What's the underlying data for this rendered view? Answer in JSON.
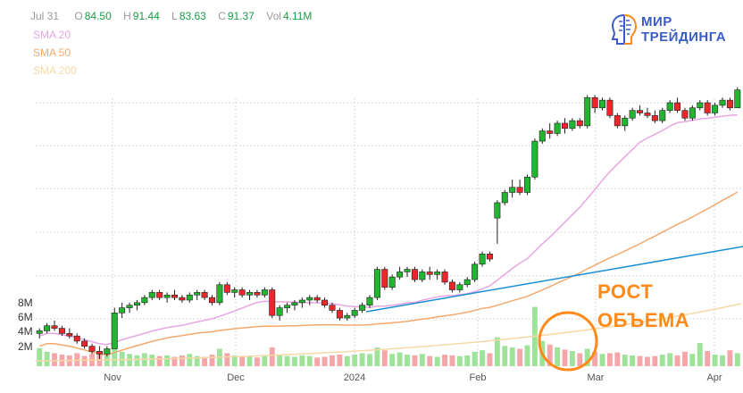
{
  "legend": {
    "date": "Jul 31",
    "o_key": "O",
    "o": "84.50",
    "h_key": "H",
    "h": "91.44",
    "l_key": "L",
    "l": "83.63",
    "c_key": "C",
    "c": "91.37",
    "vol_key": "Vol",
    "vol": "4.11M",
    "sma20": "SMA 20",
    "sma50": "SMA 50",
    "sma200": "SMA 200"
  },
  "logo": {
    "line1": "МИР",
    "line2": "ТРЕЙДИНГА"
  },
  "annotation": {
    "line1": "РОСТ",
    "line2": "ОБЪЕМА"
  },
  "colors": {
    "up": "#21b530",
    "down": "#e8282b",
    "vol_up": "#9fe39a",
    "vol_down": "#f4a6a8",
    "sma20": "#e7a6e4",
    "sma50": "#f3a96e",
    "sma200": "#f6d9a6",
    "trend": "#1a8fd6",
    "annotation": "#ff8a1a",
    "grid": "#d9d9d9",
    "logo": "#3a5cc6"
  },
  "chart_data": {
    "type": "candlestick",
    "x_labels": [
      "Nov",
      "Dec",
      "2024",
      "Feb",
      "Mar",
      "Apr"
    ],
    "volume_ticks": [
      "8M",
      "6M",
      "4M",
      "2M"
    ],
    "volume_range": [
      0,
      10000000
    ],
    "price_range": [
      0,
      1
    ],
    "grid": true,
    "series": [
      {
        "name": "SMA 20",
        "color": "#e7a6e4"
      },
      {
        "name": "SMA 50",
        "color": "#f3a96e"
      },
      {
        "name": "SMA 200",
        "color": "#f6d9a6"
      }
    ],
    "candles": [
      [
        0.1,
        0.12,
        0.08,
        0.11,
        2.5
      ],
      [
        0.11,
        0.14,
        0.1,
        0.13,
        2.0
      ],
      [
        0.13,
        0.15,
        0.11,
        0.12,
        1.8
      ],
      [
        0.12,
        0.13,
        0.09,
        0.1,
        1.6
      ],
      [
        0.1,
        0.12,
        0.08,
        0.09,
        1.5
      ],
      [
        0.09,
        0.1,
        0.06,
        0.07,
        1.8
      ],
      [
        0.07,
        0.08,
        0.04,
        0.05,
        1.4
      ],
      [
        0.05,
        0.06,
        0.02,
        0.03,
        1.7
      ],
      [
        0.03,
        0.05,
        0.0,
        0.02,
        2.0
      ],
      [
        0.02,
        0.05,
        0.01,
        0.04,
        1.6
      ],
      [
        0.04,
        0.2,
        0.04,
        0.18,
        3.6
      ],
      [
        0.18,
        0.22,
        0.16,
        0.2,
        2.0
      ],
      [
        0.2,
        0.22,
        0.18,
        0.21,
        1.7
      ],
      [
        0.21,
        0.23,
        0.19,
        0.22,
        1.5
      ],
      [
        0.22,
        0.25,
        0.21,
        0.24,
        1.8
      ],
      [
        0.24,
        0.27,
        0.23,
        0.26,
        1.6
      ],
      [
        0.26,
        0.27,
        0.23,
        0.24,
        1.4
      ],
      [
        0.24,
        0.26,
        0.22,
        0.25,
        1.5
      ],
      [
        0.25,
        0.27,
        0.23,
        0.24,
        1.3
      ],
      [
        0.24,
        0.25,
        0.22,
        0.23,
        1.5
      ],
      [
        0.23,
        0.26,
        0.22,
        0.25,
        1.7
      ],
      [
        0.25,
        0.27,
        0.23,
        0.26,
        1.4
      ],
      [
        0.26,
        0.27,
        0.23,
        0.24,
        1.3
      ],
      [
        0.24,
        0.25,
        0.21,
        0.22,
        1.6
      ],
      [
        0.22,
        0.3,
        0.21,
        0.29,
        2.4
      ],
      [
        0.29,
        0.3,
        0.25,
        0.26,
        1.8
      ],
      [
        0.26,
        0.28,
        0.24,
        0.27,
        1.5
      ],
      [
        0.27,
        0.28,
        0.24,
        0.25,
        1.4
      ],
      [
        0.25,
        0.27,
        0.23,
        0.26,
        1.3
      ],
      [
        0.26,
        0.27,
        0.24,
        0.25,
        1.2
      ],
      [
        0.25,
        0.28,
        0.24,
        0.27,
        1.4
      ],
      [
        0.27,
        0.28,
        0.16,
        0.17,
        2.6
      ],
      [
        0.17,
        0.21,
        0.15,
        0.2,
        1.5
      ],
      [
        0.2,
        0.22,
        0.18,
        0.21,
        1.4
      ],
      [
        0.21,
        0.23,
        0.19,
        0.22,
        1.3
      ],
      [
        0.22,
        0.24,
        0.2,
        0.23,
        1.5
      ],
      [
        0.23,
        0.25,
        0.21,
        0.24,
        1.4
      ],
      [
        0.24,
        0.25,
        0.22,
        0.23,
        1.2
      ],
      [
        0.23,
        0.24,
        0.2,
        0.21,
        1.3
      ],
      [
        0.21,
        0.22,
        0.18,
        0.19,
        1.5
      ],
      [
        0.19,
        0.2,
        0.15,
        0.16,
        1.6
      ],
      [
        0.16,
        0.18,
        0.15,
        0.17,
        1.4
      ],
      [
        0.17,
        0.2,
        0.16,
        0.19,
        1.6
      ],
      [
        0.19,
        0.22,
        0.18,
        0.21,
        1.8
      ],
      [
        0.21,
        0.25,
        0.2,
        0.24,
        1.7
      ],
      [
        0.24,
        0.36,
        0.23,
        0.35,
        2.6
      ],
      [
        0.35,
        0.36,
        0.27,
        0.28,
        2.2
      ],
      [
        0.28,
        0.33,
        0.27,
        0.32,
        1.7
      ],
      [
        0.32,
        0.36,
        0.31,
        0.34,
        1.9
      ],
      [
        0.34,
        0.36,
        0.32,
        0.35,
        1.6
      ],
      [
        0.35,
        0.36,
        0.3,
        0.31,
        1.5
      ],
      [
        0.31,
        0.35,
        0.3,
        0.34,
        1.7
      ],
      [
        0.34,
        0.36,
        0.31,
        0.33,
        1.4
      ],
      [
        0.33,
        0.35,
        0.31,
        0.34,
        1.3
      ],
      [
        0.34,
        0.35,
        0.29,
        0.3,
        1.6
      ],
      [
        0.3,
        0.31,
        0.26,
        0.27,
        1.5
      ],
      [
        0.27,
        0.3,
        0.26,
        0.29,
        1.4
      ],
      [
        0.29,
        0.32,
        0.28,
        0.31,
        1.5
      ],
      [
        0.31,
        0.38,
        0.3,
        0.37,
        2.0
      ],
      [
        0.37,
        0.42,
        0.36,
        0.41,
        2.2
      ],
      [
        0.41,
        0.42,
        0.38,
        0.39,
        1.8
      ],
      [
        0.55,
        0.62,
        0.45,
        0.61,
        4.0
      ],
      [
        0.61,
        0.66,
        0.6,
        0.65,
        2.8
      ],
      [
        0.65,
        0.7,
        0.63,
        0.67,
        2.6
      ],
      [
        0.67,
        0.7,
        0.64,
        0.65,
        2.4
      ],
      [
        0.65,
        0.72,
        0.64,
        0.71,
        2.9
      ],
      [
        0.71,
        0.86,
        0.7,
        0.85,
        8.2
      ],
      [
        0.85,
        0.9,
        0.84,
        0.89,
        3.5
      ],
      [
        0.89,
        0.92,
        0.86,
        0.88,
        3.0
      ],
      [
        0.88,
        0.93,
        0.87,
        0.92,
        2.6
      ],
      [
        0.92,
        0.94,
        0.88,
        0.9,
        2.3
      ],
      [
        0.9,
        0.94,
        0.89,
        0.93,
        2.1
      ],
      [
        0.93,
        0.94,
        0.9,
        0.91,
        1.8
      ],
      [
        0.91,
        1.03,
        0.9,
        1.02,
        2.4
      ],
      [
        1.02,
        1.03,
        0.96,
        0.98,
        2.0
      ],
      [
        0.98,
        1.02,
        0.97,
        1.01,
        1.7
      ],
      [
        1.01,
        1.02,
        0.94,
        0.95,
        1.8
      ],
      [
        0.95,
        0.96,
        0.9,
        0.91,
        1.9
      ],
      [
        0.91,
        0.95,
        0.89,
        0.94,
        1.6
      ],
      [
        0.94,
        0.98,
        0.93,
        0.97,
        1.5
      ],
      [
        0.97,
        0.99,
        0.95,
        0.96,
        1.4
      ],
      [
        0.96,
        0.98,
        0.94,
        0.95,
        1.3
      ],
      [
        0.95,
        0.97,
        0.92,
        0.93,
        1.4
      ],
      [
        0.93,
        0.98,
        0.92,
        0.97,
        1.6
      ],
      [
        0.97,
        1.01,
        0.96,
        1.0,
        1.8
      ],
      [
        1.0,
        1.02,
        0.96,
        0.97,
        1.5
      ],
      [
        0.97,
        0.98,
        0.93,
        0.94,
        2.0
      ],
      [
        0.94,
        0.99,
        0.93,
        0.98,
        1.7
      ],
      [
        0.98,
        1.01,
        0.97,
        1.0,
        3.2
      ],
      [
        1.0,
        1.01,
        0.95,
        0.96,
        2.1
      ],
      [
        0.96,
        1.0,
        0.95,
        0.99,
        1.6
      ],
      [
        0.99,
        1.02,
        0.98,
        1.01,
        1.5
      ],
      [
        1.01,
        1.02,
        0.97,
        0.98,
        2.2
      ],
      [
        0.98,
        1.06,
        0.98,
        1.05,
        1.8
      ]
    ]
  }
}
